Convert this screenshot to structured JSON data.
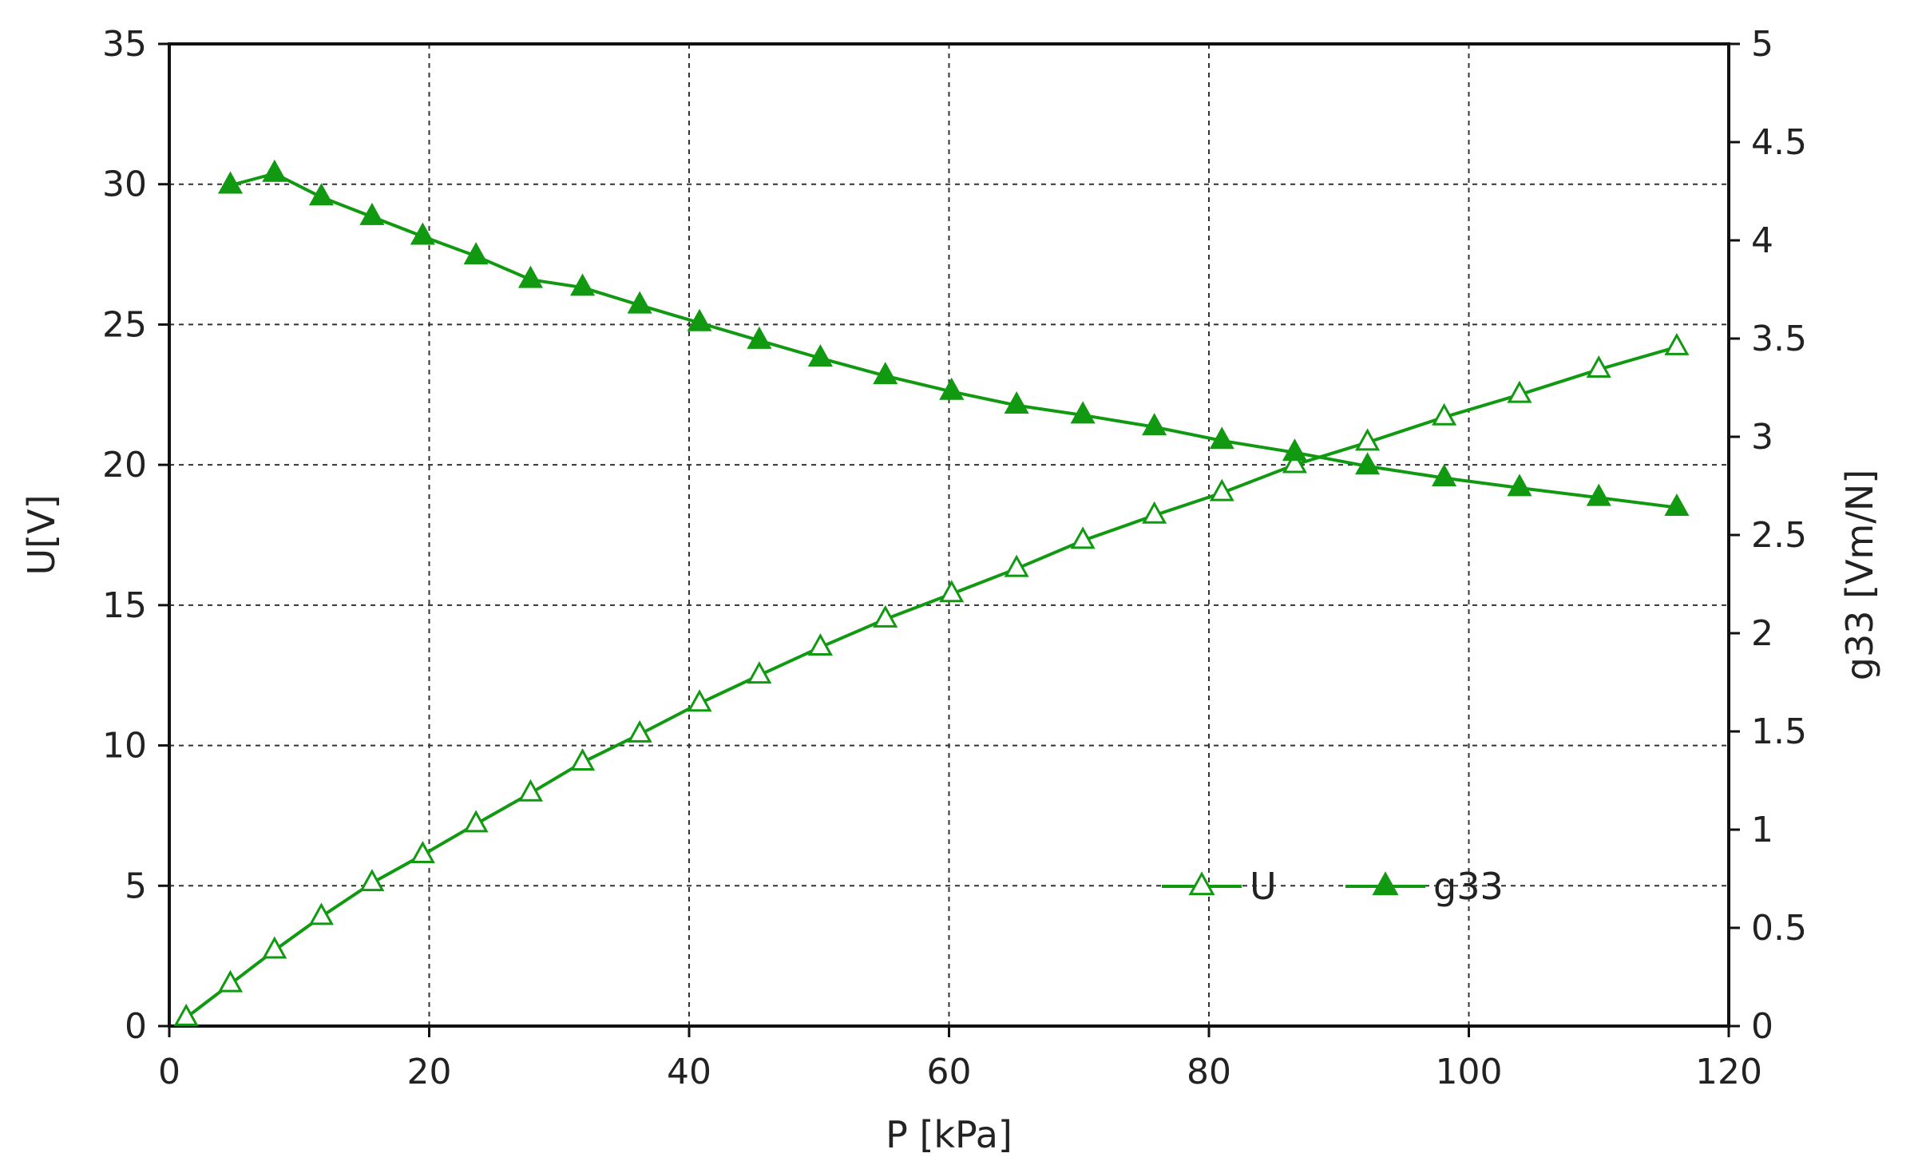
{
  "chart_data": {
    "type": "line",
    "title": "",
    "xlabel": "P [kPa]",
    "ylabel_left": "U[V]",
    "ylabel_right": "g33 [Vm/N]",
    "xlim": [
      0,
      120
    ],
    "ylim_left": [
      0,
      35
    ],
    "ylim_right": [
      0,
      5
    ],
    "x_ticks": [
      0,
      20,
      40,
      60,
      80,
      100,
      120
    ],
    "y_left_ticks": [
      0,
      5,
      10,
      15,
      20,
      25,
      30,
      35
    ],
    "y_right_ticks": [
      0,
      0.5,
      1,
      1.5,
      2,
      2.5,
      3,
      3.5,
      4,
      4.5,
      5
    ],
    "grid": true,
    "legend_position": "lower-right",
    "colors": {
      "series": "#119911",
      "frame": "#111111",
      "grid": "#333333"
    },
    "series": [
      {
        "name": "U",
        "axis": "left",
        "marker": "open-triangle",
        "x": [
          1.3,
          4.7,
          8.1,
          11.7,
          15.6,
          19.5,
          23.6,
          27.8,
          31.8,
          36.2,
          40.8,
          45.4,
          50.1,
          55.1,
          60.2,
          65.2,
          70.3,
          75.8,
          81.0,
          86.6,
          92.2,
          98.1,
          103.9,
          110.0,
          116.0
        ],
        "values": [
          0.3,
          1.5,
          2.7,
          3.9,
          5.1,
          6.1,
          7.2,
          8.3,
          9.4,
          10.4,
          11.5,
          12.5,
          13.5,
          14.5,
          15.4,
          16.3,
          17.3,
          18.2,
          19.0,
          20.0,
          20.8,
          21.7,
          22.5,
          23.4,
          24.2
        ]
      },
      {
        "name": "g33",
        "axis": "right",
        "marker": "filled-triangle",
        "x": [
          4.7,
          8.1,
          11.7,
          15.6,
          19.5,
          23.6,
          27.8,
          31.8,
          36.2,
          40.8,
          45.4,
          50.1,
          55.1,
          60.2,
          65.2,
          70.3,
          75.8,
          81.0,
          86.6,
          92.2,
          98.1,
          103.9,
          110.0,
          116.0
        ],
        "values": [
          4.28,
          4.34,
          4.22,
          4.12,
          4.02,
          3.92,
          3.8,
          3.76,
          3.67,
          3.58,
          3.49,
          3.4,
          3.31,
          3.23,
          3.16,
          3.11,
          3.05,
          2.98,
          2.92,
          2.85,
          2.79,
          2.74,
          2.69,
          2.64
        ]
      }
    ]
  }
}
